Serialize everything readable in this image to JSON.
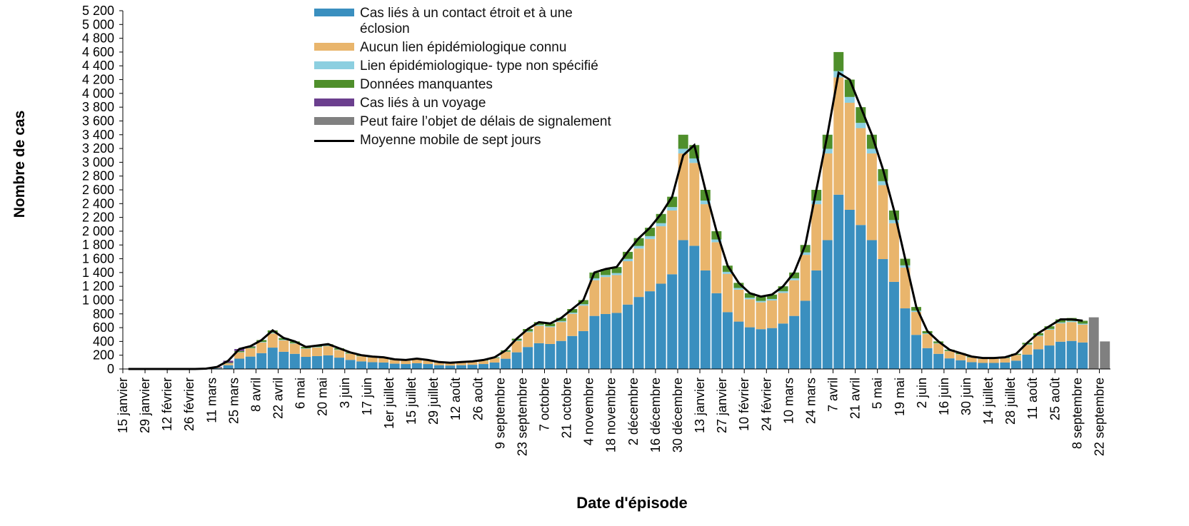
{
  "chart_data": {
    "type": "stacked-bar",
    "y_label": "Nombre de cas",
    "x_label": "Date d'épisode",
    "categories": [
      "15 janvier",
      null,
      "29 janvier",
      null,
      "12 février",
      null,
      "26 février",
      null,
      "11 mars",
      null,
      "25 mars",
      null,
      "8 avril",
      null,
      "22 avril",
      null,
      "6 mai",
      null,
      "20 mai",
      null,
      "3 juin",
      null,
      "17 juin",
      null,
      "1er juillet",
      null,
      "15 juillet",
      null,
      "29 juillet",
      null,
      "12 août",
      null,
      "26 août",
      null,
      "9 septembre",
      null,
      "23 septembre",
      null,
      "7 octobre",
      null,
      "21 octobre",
      null,
      "4 novembre",
      null,
      "18 novembre",
      null,
      "2 décembre",
      null,
      "16 décembre",
      null,
      "30 décembre",
      null,
      "13 janvier",
      null,
      "27 janvier",
      null,
      "10 février",
      null,
      "24 février",
      null,
      "10 mars",
      null,
      "24 mars",
      null,
      "7 avril",
      null,
      "21 avril",
      null,
      "5 mai",
      null,
      "19 mai",
      null,
      "2 juin",
      null,
      "16 juin",
      null,
      "30 juin",
      null,
      "14 juillet",
      null,
      "28 juillet",
      null,
      "11 août",
      null,
      "25 août",
      null,
      "8 septembre",
      null,
      "22 septembre"
    ],
    "series": [
      {
        "name": "Cas liés à un contact étroit et à une éclosion",
        "color": "#3a8fbf",
        "values": [
          0,
          0,
          0,
          0,
          0,
          0,
          0,
          3,
          12,
          55,
          150,
          180,
          230,
          310,
          250,
          220,
          176,
          187,
          198,
          165,
          132,
          110,
          99,
          94,
          77,
          72,
          83,
          72,
          55,
          50,
          55,
          61,
          72,
          94,
          149,
          242,
          319,
          374,
          363,
          407,
          479,
          550,
          770,
          798,
          814,
          935,
          1045,
          1128,
          1238,
          1375,
          1870,
          1788,
          1430,
          1100,
          825,
          688,
          605,
          578,
          594,
          660,
          770,
          990,
          1430,
          1870,
          2530,
          2310,
          2090,
          1870,
          1595,
          1265,
          880,
          495,
          303,
          220,
          154,
          127,
          99,
          88,
          88,
          94,
          121,
          209,
          286,
          341,
          396,
          407,
          385,
          0,
          0
        ]
      },
      {
        "name": "Aucun lien épidémiologique connu",
        "color": "#e9b56c",
        "values": [
          0,
          0,
          0,
          0,
          0,
          0,
          0,
          2,
          6,
          25,
          90,
          120,
          155,
          205,
          165,
          148,
          118,
          126,
          133,
          111,
          89,
          74,
          67,
          63,
          52,
          48,
          55,
          48,
          37,
          33,
          37,
          41,
          48,
          63,
          100,
          163,
          215,
          252,
          244,
          274,
          322,
          370,
          518,
          537,
          548,
          629,
          703,
          759,
          833,
          925,
          1258,
          1203,
          962,
          740,
          555,
          463,
          407,
          389,
          400,
          444,
          518,
          666,
          962,
          1258,
          1702,
          1554,
          1406,
          1258,
          1073,
          851,
          592,
          333,
          204,
          148,
          104,
          85,
          67,
          59,
          59,
          63,
          81,
          141,
          192,
          229,
          266,
          274,
          259,
          0,
          0
        ]
      },
      {
        "name": "Lien épidémiologique- type non spécifié",
        "color": "#8ccfe0",
        "values": [
          0,
          0,
          0,
          0,
          0,
          0,
          0,
          0,
          0,
          2,
          5,
          5,
          8,
          11,
          9,
          8,
          6,
          7,
          7,
          6,
          5,
          4,
          4,
          3,
          3,
          3,
          3,
          3,
          2,
          2,
          2,
          2,
          3,
          3,
          5,
          9,
          12,
          14,
          13,
          15,
          17,
          20,
          28,
          29,
          30,
          34,
          38,
          41,
          45,
          50,
          68,
          65,
          52,
          40,
          30,
          25,
          22,
          21,
          22,
          24,
          28,
          36,
          52,
          68,
          92,
          84,
          76,
          68,
          58,
          46,
          32,
          18,
          11,
          8,
          6,
          5,
          4,
          3,
          3,
          3,
          4,
          8,
          10,
          12,
          14,
          15,
          14,
          0,
          0
        ]
      },
      {
        "name": "Données manquantes",
        "color": "#4f8f2b",
        "values": [
          0,
          0,
          0,
          0,
          0,
          0,
          0,
          0,
          2,
          8,
          15,
          20,
          27,
          34,
          26,
          24,
          20,
          20,
          22,
          18,
          14,
          12,
          10,
          10,
          8,
          7,
          9,
          7,
          6,
          5,
          6,
          6,
          7,
          10,
          16,
          26,
          34,
          40,
          40,
          44,
          52,
          60,
          84,
          86,
          88,
          102,
          114,
          122,
          134,
          150,
          204,
          194,
          156,
          120,
          90,
          74,
          66,
          62,
          64,
          72,
          84,
          108,
          156,
          204,
          276,
          252,
          228,
          204,
          174,
          138,
          96,
          54,
          32,
          24,
          16,
          13,
          10,
          10,
          10,
          10,
          14,
          22,
          32,
          38,
          44,
          44,
          42,
          0,
          0
        ]
      },
      {
        "name": "Cas liés à un voyage",
        "color": "#6b3f8e",
        "values": [
          0,
          0,
          0,
          0,
          0,
          0,
          0,
          0,
          10,
          30,
          30,
          5,
          0,
          0,
          0,
          0,
          0,
          0,
          0,
          0,
          0,
          0,
          0,
          0,
          0,
          0,
          0,
          0,
          0,
          0,
          0,
          0,
          0,
          0,
          0,
          0,
          0,
          0,
          0,
          0,
          0,
          0,
          0,
          0,
          0,
          0,
          0,
          0,
          0,
          0,
          0,
          0,
          0,
          0,
          0,
          0,
          0,
          0,
          0,
          0,
          0,
          0,
          0,
          0,
          0,
          0,
          0,
          0,
          0,
          0,
          0,
          0,
          0,
          0,
          0,
          0,
          0,
          0,
          0,
          0,
          0,
          0,
          0,
          0,
          0,
          0,
          0,
          0,
          0
        ]
      },
      {
        "name": "Peut faire l’objet de délais de signalement",
        "color": "#808080",
        "values": [
          0,
          0,
          0,
          0,
          0,
          0,
          0,
          0,
          0,
          0,
          0,
          0,
          0,
          0,
          0,
          0,
          0,
          0,
          0,
          0,
          0,
          0,
          0,
          0,
          0,
          0,
          0,
          0,
          0,
          0,
          0,
          0,
          0,
          0,
          0,
          0,
          0,
          0,
          0,
          0,
          0,
          0,
          0,
          0,
          0,
          0,
          0,
          0,
          0,
          0,
          0,
          0,
          0,
          0,
          0,
          0,
          0,
          0,
          0,
          0,
          0,
          0,
          0,
          0,
          0,
          0,
          0,
          0,
          0,
          0,
          0,
          0,
          0,
          0,
          0,
          0,
          0,
          0,
          0,
          0,
          0,
          0,
          0,
          0,
          0,
          0,
          0,
          750,
          400
        ]
      }
    ],
    "moving_average": {
      "name": "Moyenne mobile de sept jours",
      "color": "#000000",
      "values": [
        0,
        0,
        0,
        0,
        0,
        0,
        0,
        5,
        30,
        120,
        290,
        330,
        420,
        560,
        450,
        400,
        320,
        340,
        360,
        300,
        240,
        200,
        180,
        170,
        140,
        130,
        150,
        130,
        100,
        90,
        100,
        110,
        130,
        170,
        270,
        440,
        580,
        680,
        660,
        740,
        870,
        1000,
        1400,
        1450,
        1480,
        1700,
        1900,
        2050,
        2250,
        2500,
        3100,
        3250,
        2600,
        2000,
        1500,
        1250,
        1100,
        1050,
        1080,
        1200,
        1400,
        1800,
        2600,
        3400,
        4300,
        4200,
        3800,
        3400,
        2900,
        2300,
        1600,
        900,
        550,
        400,
        280,
        230,
        180,
        160,
        160,
        170,
        220,
        380,
        520,
        620,
        720,
        720,
        700,
        null,
        null
      ]
    },
    "ylim": [
      0,
      5200
    ],
    "yticks": [
      0,
      200,
      400,
      600,
      800,
      {
        "value": 1000,
        "label": "1 000"
      },
      {
        "value": 1200,
        "label": "1 200"
      },
      {
        "value": 1400,
        "label": "1 400"
      },
      {
        "value": 1600,
        "label": "1 600"
      },
      {
        "value": 1800,
        "label": "1 800"
      },
      {
        "value": 2000,
        "label": "2 000"
      },
      {
        "value": 2200,
        "label": "2 200"
      },
      {
        "value": 2400,
        "label": "2 400"
      },
      {
        "value": 2600,
        "label": "2 600"
      },
      {
        "value": 2800,
        "label": "2 800"
      },
      {
        "value": 3000,
        "label": "3 000"
      },
      {
        "value": 3200,
        "label": "3 200"
      },
      {
        "value": 3400,
        "label": "3 400"
      },
      {
        "value": 3600,
        "label": "3 600"
      },
      {
        "value": 3800,
        "label": "3 800"
      },
      {
        "value": 4000,
        "label": "4 000"
      },
      {
        "value": 4200,
        "label": "4 200"
      },
      {
        "value": 4400,
        "label": "4 400"
      },
      {
        "value": 4600,
        "label": "4 600"
      },
      {
        "value": 4800,
        "label": "4 800"
      },
      {
        "value": 5000,
        "label": "5 000"
      },
      {
        "value": 5200,
        "label": "5 200"
      }
    ],
    "grid": false
  }
}
